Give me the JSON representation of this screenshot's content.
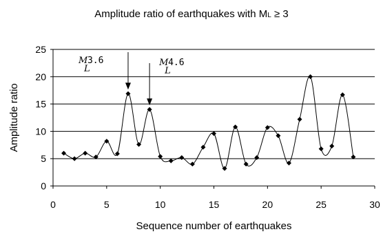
{
  "chart_data": {
    "type": "line",
    "title_prefix": "Amplitude ratio of earthquakes with M",
    "title_sub": "L",
    "title_suffix": " ≥ 3",
    "xlabel": "Sequence number of earthquakes",
    "ylabel": "Amplitude ratio",
    "xlim": [
      0,
      30
    ],
    "ylim": [
      0,
      25
    ],
    "xticks": [
      0,
      5,
      10,
      15,
      20,
      25,
      30
    ],
    "yticks": [
      0,
      5,
      10,
      15,
      20,
      25
    ],
    "grid": "horizontal",
    "series": [
      {
        "x": [
          1,
          2,
          3,
          4,
          5,
          6,
          7,
          8,
          9,
          10,
          11,
          12,
          13,
          14,
          15,
          16,
          17,
          18,
          19,
          20,
          21,
          22,
          23,
          24,
          25,
          26,
          27,
          28
        ],
        "y": [
          6.0,
          5.0,
          6.0,
          5.3,
          8.2,
          5.9,
          16.9,
          7.6,
          14.0,
          5.4,
          4.6,
          5.2,
          4.0,
          7.1,
          9.6,
          3.2,
          10.8,
          4.0,
          5.2,
          10.7,
          9.2,
          4.2,
          12.2,
          20.0,
          6.8,
          7.3,
          16.7,
          5.3
        ]
      }
    ],
    "annotations": [
      {
        "italic": "M",
        "sub": "L",
        "value": "3.6",
        "x": 7,
        "y": 16.9
      },
      {
        "italic": "M",
        "sub": "L",
        "value": "4.6",
        "x": 9,
        "y": 14.0
      }
    ]
  }
}
